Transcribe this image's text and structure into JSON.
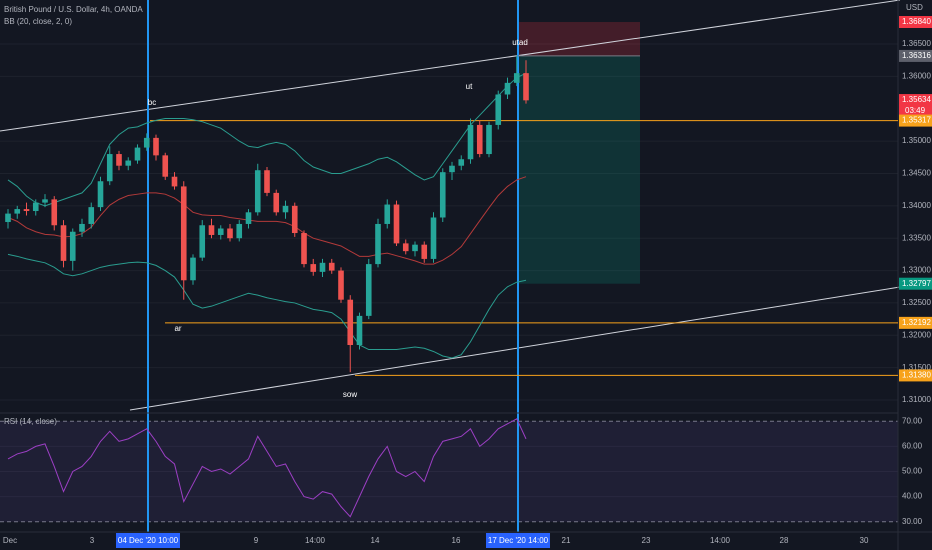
{
  "header": {
    "symbol": "British Pound / U.S. Dollar, 4h, OANDA",
    "indicator": "BB (20, close, 2, 0)",
    "currency": "USD"
  },
  "chart_data": [
    {
      "type": "candlestick",
      "open": [
        1.3375,
        1.3388,
        1.3395,
        1.3392,
        1.3405,
        1.341,
        1.337,
        1.3315,
        1.336,
        1.3372,
        1.3398,
        1.3438,
        1.348,
        1.3462,
        1.347,
        1.349,
        1.3505,
        1.3478,
        1.3445,
        1.343,
        1.3285,
        1.332,
        1.337,
        1.3355,
        1.3365,
        1.335,
        1.3372,
        1.339,
        1.3455,
        1.342,
        1.339,
        1.34,
        1.3358,
        1.331,
        1.3298,
        1.3312,
        1.33,
        1.3255,
        1.3185,
        1.323,
        1.331,
        1.3372,
        1.3402,
        1.3342,
        1.333,
        1.334,
        1.3318,
        1.3382,
        1.3452,
        1.3462,
        1.3472,
        1.3525,
        1.348,
        1.3525,
        1.3572,
        1.359,
        1.3605
      ],
      "high": [
        1.3395,
        1.34,
        1.3405,
        1.341,
        1.3418,
        1.3415,
        1.3378,
        1.3365,
        1.338,
        1.3405,
        1.3445,
        1.3492,
        1.3485,
        1.3475,
        1.3495,
        1.3512,
        1.351,
        1.3482,
        1.3452,
        1.3438,
        1.3325,
        1.3378,
        1.338,
        1.337,
        1.3372,
        1.3378,
        1.3395,
        1.3465,
        1.346,
        1.3425,
        1.3408,
        1.3405,
        1.3362,
        1.3318,
        1.3318,
        1.3318,
        1.3305,
        1.3262,
        1.3235,
        1.3318,
        1.338,
        1.341,
        1.3408,
        1.3348,
        1.3345,
        1.3345,
        1.339,
        1.3458,
        1.3468,
        1.3478,
        1.3535,
        1.3532,
        1.353,
        1.3578,
        1.3598,
        1.3632,
        1.3625
      ],
      "low": [
        1.3365,
        1.338,
        1.3385,
        1.3385,
        1.3398,
        1.3362,
        1.3305,
        1.33,
        1.3352,
        1.3365,
        1.3392,
        1.3432,
        1.3455,
        1.3455,
        1.3465,
        1.3485,
        1.347,
        1.344,
        1.3425,
        1.3255,
        1.3278,
        1.3315,
        1.335,
        1.3348,
        1.3345,
        1.3345,
        1.3365,
        1.3385,
        1.3415,
        1.3385,
        1.338,
        1.3352,
        1.3305,
        1.3292,
        1.329,
        1.3295,
        1.325,
        1.3143,
        1.3178,
        1.3225,
        1.3305,
        1.3365,
        1.3338,
        1.3325,
        1.3322,
        1.3312,
        1.3312,
        1.3375,
        1.344,
        1.3455,
        1.3465,
        1.3475,
        1.3475,
        1.3518,
        1.3565,
        1.3585,
        1.3558
      ],
      "close": [
        1.3388,
        1.3395,
        1.3392,
        1.3405,
        1.341,
        1.337,
        1.3315,
        1.336,
        1.3372,
        1.3398,
        1.3438,
        1.348,
        1.3462,
        1.347,
        1.349,
        1.3505,
        1.3478,
        1.3445,
        1.343,
        1.3285,
        1.332,
        1.337,
        1.3355,
        1.3365,
        1.335,
        1.3372,
        1.339,
        1.3455,
        1.342,
        1.339,
        1.34,
        1.3358,
        1.331,
        1.3298,
        1.3312,
        1.33,
        1.3255,
        1.3185,
        1.323,
        1.331,
        1.3372,
        1.3402,
        1.3342,
        1.333,
        1.334,
        1.3318,
        1.3382,
        1.3452,
        1.3462,
        1.3472,
        1.3525,
        1.348,
        1.3525,
        1.3572,
        1.359,
        1.3605,
        1.3563
      ],
      "up_color": "#26a69a",
      "down_color": "#ef5350",
      "bollinger": [
        {
          "color": "#2a9d8f",
          "values": [
            1.344,
            1.343,
            1.3415,
            1.3405,
            1.34,
            1.3405,
            1.341,
            1.3415,
            1.342,
            1.3435,
            1.3465,
            1.3495,
            1.351,
            1.352,
            1.3522,
            1.3528,
            1.3532,
            1.3535,
            1.3535,
            1.3535,
            1.3533,
            1.353,
            1.3525,
            1.352,
            1.351,
            1.35,
            1.3492,
            1.349,
            1.3495,
            1.3498,
            1.3495,
            1.3485,
            1.347,
            1.346,
            1.3455,
            1.345,
            1.345,
            1.3455,
            1.346,
            1.3465,
            1.3472,
            1.3475,
            1.3468,
            1.3458,
            1.3448,
            1.344,
            1.3445,
            1.3465,
            1.3485,
            1.3505,
            1.3525,
            1.354,
            1.3555,
            1.357,
            1.3585,
            1.3598,
            1.3605
          ]
        },
        {
          "color": "#b33a3a",
          "values": [
            1.3382,
            1.3376,
            1.3366,
            1.336,
            1.3356,
            1.3355,
            1.3352,
            1.3353,
            1.3357,
            1.3367,
            1.3385,
            1.3401,
            1.341,
            1.3416,
            1.3418,
            1.342,
            1.342,
            1.3418,
            1.3412,
            1.3402,
            1.339,
            1.3386,
            1.3385,
            1.3385,
            1.3382,
            1.338,
            1.3378,
            1.3376,
            1.3376,
            1.3376,
            1.3374,
            1.3368,
            1.3358,
            1.335,
            1.3346,
            1.3342,
            1.3338,
            1.333,
            1.3322,
            1.3322,
            1.3325,
            1.3327,
            1.3323,
            1.3319,
            1.3315,
            1.331,
            1.331,
            1.3316,
            1.3325,
            1.3337,
            1.3357,
            1.3377,
            1.3397,
            1.3416,
            1.343,
            1.344,
            1.3445
          ]
        },
        {
          "color": "#2a9d8f",
          "values": [
            1.3325,
            1.3322,
            1.3318,
            1.3315,
            1.3312,
            1.3305,
            1.3295,
            1.3292,
            1.3295,
            1.33,
            1.3305,
            1.3308,
            1.331,
            1.3312,
            1.3313,
            1.3312,
            1.3308,
            1.33,
            1.329,
            1.327,
            1.3248,
            1.3242,
            1.3245,
            1.325,
            1.3255,
            1.326,
            1.3265,
            1.3262,
            1.3258,
            1.3255,
            1.3252,
            1.325,
            1.3245,
            1.324,
            1.3238,
            1.3235,
            1.3225,
            1.3205,
            1.3185,
            1.3178,
            1.3178,
            1.3178,
            1.3178,
            1.318,
            1.3182,
            1.318,
            1.3175,
            1.3168,
            1.3165,
            1.317,
            1.319,
            1.3215,
            1.324,
            1.3262,
            1.3275,
            1.3282,
            1.3285
          ]
        }
      ],
      "ylim": [
        1.3718,
        1.30815
      ],
      "yticks": [
        {
          "value": 1.365,
          "label": "1.36500"
        },
        {
          "value": 1.36,
          "label": "1.36000"
        },
        {
          "value": 1.35,
          "label": "1.35000"
        },
        {
          "value": 1.345,
          "label": "1.34500"
        },
        {
          "value": 1.34,
          "label": "1.34000"
        },
        {
          "value": 1.335,
          "label": "1.33500"
        },
        {
          "value": 1.33,
          "label": "1.33000"
        },
        {
          "value": 1.325,
          "label": "1.32500"
        },
        {
          "value": 1.32,
          "label": "1.32000"
        },
        {
          "value": 1.315,
          "label": "1.31500"
        },
        {
          "value": 1.31,
          "label": "1.31000"
        }
      ],
      "price_labels": [
        {
          "value": 1.3684,
          "label": "1.36840",
          "color": "#f23645"
        },
        {
          "value": 1.36316,
          "label": "1.36316",
          "color": "#5d606b"
        },
        {
          "value": 1.35634,
          "label": "1.35634",
          "color": "#f23645"
        },
        {
          "value": 1.35317,
          "label": "1.35317",
          "color": "#f7a21b"
        },
        {
          "value": 1.32797,
          "label": "1.32797",
          "color": "#089981"
        },
        {
          "value": 1.32192,
          "label": "1.32192",
          "color": "#f7a21b"
        },
        {
          "value": 1.3138,
          "label": "1.31380",
          "color": "#f7a21b"
        }
      ],
      "countdown": "03:49",
      "annotations": [
        "bc",
        "ar",
        "sow",
        "ut",
        "utad"
      ]
    },
    {
      "type": "line",
      "title": "RSI (14, close)",
      "color": "#9c3fc4",
      "values": [
        55,
        57,
        58,
        60,
        61,
        52,
        42,
        50,
        52,
        56,
        62,
        66,
        62,
        63,
        65,
        67,
        62,
        56,
        53,
        38,
        45,
        52,
        50,
        51,
        49,
        52,
        55,
        64,
        58,
        52,
        53,
        46,
        40,
        39,
        42,
        41,
        36,
        32,
        40,
        48,
        55,
        60,
        50,
        48,
        50,
        46,
        56,
        62,
        63,
        64,
        67,
        60,
        63,
        67,
        69,
        71,
        63
      ],
      "ylim": [
        72.9,
        26.7
      ],
      "yticks": [
        {
          "value": 70,
          "label": "70.00"
        },
        {
          "value": 60,
          "label": "60.00"
        },
        {
          "value": 50,
          "label": "50.00"
        },
        {
          "value": 40,
          "label": "40.00"
        },
        {
          "value": 30,
          "label": "30.00"
        }
      ]
    }
  ],
  "x_axis": [
    "Dec",
    "3",
    "04 Dec '20  10:00",
    "9",
    "14:00",
    "14",
    "16",
    "17 Dec '20  14:00",
    "21",
    "23",
    "14:00",
    "28",
    "30"
  ]
}
